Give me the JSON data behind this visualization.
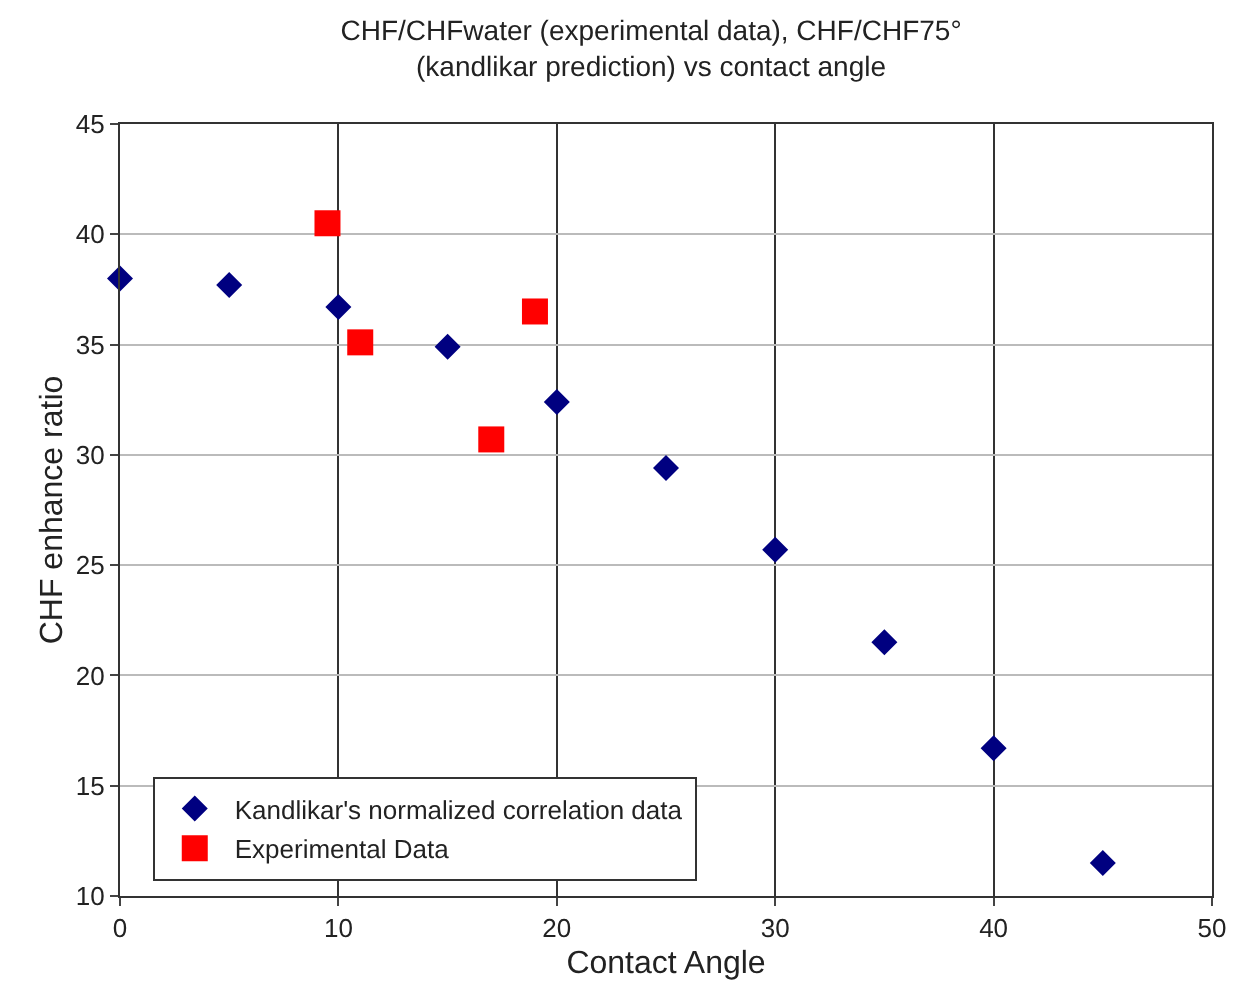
{
  "chart_data": {
    "type": "scatter",
    "title": "CHF/CHFwater (experimental data), CHF/CHF75°\n(kandlikar prediction) vs contact angle",
    "xlabel": "Contact Angle",
    "ylabel": "CHF enhance ratio",
    "series": [
      {
        "name": "Kandlikar's normalized correlation data",
        "color": "#000080",
        "marker": "diamond",
        "x": [
          0,
          5,
          10,
          15,
          20,
          25,
          30,
          35,
          40,
          45
        ],
        "values": [
          38,
          37.7,
          36.7,
          34.9,
          32.4,
          29.4,
          25.7,
          21.5,
          16.7,
          11.5
        ]
      },
      {
        "name": "Experimental Data",
        "color": "#ff0000",
        "marker": "square",
        "x": [
          9.5,
          11,
          17,
          19
        ],
        "values": [
          40.5,
          35.1,
          30.7,
          36.5
        ]
      }
    ],
    "xlim": [
      0,
      50
    ],
    "xticks": [
      0,
      10,
      20,
      30,
      40,
      50
    ],
    "ylim": [
      10,
      45
    ],
    "yticks": [
      10,
      15,
      20,
      25,
      30,
      35,
      40,
      45
    ],
    "grid": true,
    "legend": "bottom left"
  }
}
